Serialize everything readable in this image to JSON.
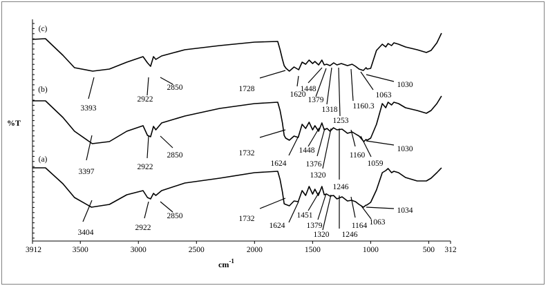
{
  "chart_data": {
    "type": "line",
    "ylabel": "%T",
    "xlabel": "cm",
    "xlabel_exponent": "-1",
    "x_ticks": [
      "3912",
      "3500",
      "3000",
      "2500",
      "2000",
      "1500",
      "1000",
      "500",
      "312"
    ],
    "xlim": [
      3912,
      312
    ],
    "series": [
      {
        "name": "(c)",
        "x": [
          3912,
          3800,
          3650,
          3550,
          3393,
          3250,
          3100,
          2960,
          2922,
          2895,
          2870,
          2850,
          2800,
          2600,
          2300,
          2000,
          1800,
          1780,
          1760,
          1745,
          1728,
          1700,
          1660,
          1620,
          1590,
          1560,
          1530,
          1500,
          1480,
          1448,
          1420,
          1400,
          1379,
          1350,
          1318,
          1290,
          1253,
          1200,
          1160,
          1130,
          1100,
          1063,
          1040,
          1030,
          1000,
          950,
          900,
          870,
          850,
          820,
          800,
          760,
          700,
          600,
          520,
          480,
          430,
          390
        ],
        "y": [
          57,
          56,
          80,
          98,
          103,
          100,
          90,
          82,
          91,
          96,
          82,
          86,
          81,
          72,
          66,
          61,
          60,
          72,
          86,
          95,
          99,
          103,
          97,
          101,
          90,
          93,
          87,
          92,
          89,
          94,
          87,
          94,
          93,
          95,
          91,
          94,
          92,
          95,
          93,
          96,
          100,
          102,
          98,
          100,
          99,
          73,
          64,
          68,
          63,
          66,
          62,
          64,
          68,
          72,
          76,
          73,
          62,
          48
        ]
      },
      {
        "name": "(b)",
        "x": [
          3912,
          3800,
          3650,
          3550,
          3397,
          3250,
          3100,
          2960,
          2922,
          2895,
          2870,
          2850,
          2800,
          2600,
          2300,
          2000,
          1800,
          1780,
          1760,
          1745,
          1732,
          1700,
          1660,
          1624,
          1590,
          1560,
          1530,
          1500,
          1480,
          1448,
          1420,
          1400,
          1376,
          1350,
          1320,
          1290,
          1246,
          1200,
          1160,
          1130,
          1100,
          1059,
          1040,
          1030,
          1000,
          950,
          900,
          870,
          850,
          820,
          800,
          760,
          700,
          600,
          520,
          480,
          430,
          390
        ],
        "y": [
          146,
          146,
          170,
          190,
          208,
          205,
          190,
          182,
          196,
          198,
          183,
          188,
          178,
          168,
          157,
          150,
          148,
          160,
          178,
          196,
          200,
          203,
          197,
          199,
          180,
          186,
          177,
          188,
          182,
          190,
          178,
          188,
          186,
          190,
          185,
          188,
          187,
          193,
          191,
          194,
          197,
          205,
          202,
          203,
          200,
          180,
          150,
          156,
          148,
          152,
          148,
          150,
          156,
          160,
          164,
          160,
          150,
          139
        ]
      },
      {
        "name": "(a)",
        "x": [
          3912,
          3800,
          3650,
          3550,
          3404,
          3250,
          3100,
          2960,
          2922,
          2895,
          2870,
          2850,
          2800,
          2600,
          2300,
          2000,
          1800,
          1780,
          1760,
          1745,
          1732,
          1700,
          1660,
          1624,
          1590,
          1560,
          1530,
          1500,
          1480,
          1451,
          1420,
          1400,
          1379,
          1350,
          1320,
          1290,
          1246,
          1200,
          1164,
          1130,
          1100,
          1063,
          1040,
          1034,
          1000,
          950,
          900,
          870,
          850,
          820,
          800,
          760,
          700,
          600,
          520,
          480,
          430,
          390
        ],
        "y": [
          243,
          243,
          266,
          286,
          300,
          296,
          282,
          276,
          286,
          288,
          280,
          283,
          276,
          265,
          258,
          250,
          248,
          260,
          278,
          295,
          296,
          298,
          291,
          292,
          276,
          283,
          270,
          281,
          274,
          283,
          270,
          282,
          281,
          284,
          283,
          288,
          285,
          291,
          290,
          292,
          296,
          300,
          297,
          297,
          293,
          275,
          250,
          247,
          244,
          250,
          248,
          250,
          257,
          262,
          262,
          258,
          250,
          243
        ]
      }
    ],
    "annotations": [
      {
        "label": "(c)"
      },
      {
        "label": "(b)"
      },
      {
        "label": "(a)"
      }
    ],
    "peak_labels": [
      {
        "series": "(c)",
        "text": "3393"
      },
      {
        "series": "(c)",
        "text": "2922"
      },
      {
        "series": "(c)",
        "text": "2850"
      },
      {
        "series": "(c)",
        "text": "1728"
      },
      {
        "series": "(c)",
        "text": "1620"
      },
      {
        "series": "(c)",
        "text": "1448"
      },
      {
        "series": "(c)",
        "text": "1379"
      },
      {
        "series": "(c)",
        "text": "1318"
      },
      {
        "series": "(c)",
        "text": "1253"
      },
      {
        "series": "(c)",
        "text": "1160.3"
      },
      {
        "series": "(c)",
        "text": "1063"
      },
      {
        "series": "(c)",
        "text": "1030"
      },
      {
        "series": "(b)",
        "text": "3397"
      },
      {
        "series": "(b)",
        "text": "2922"
      },
      {
        "series": "(b)",
        "text": "2850"
      },
      {
        "series": "(b)",
        "text": "1732"
      },
      {
        "series": "(b)",
        "text": "1624"
      },
      {
        "series": "(b)",
        "text": "1448"
      },
      {
        "series": "(b)",
        "text": "1376"
      },
      {
        "series": "(b)",
        "text": "1320"
      },
      {
        "series": "(b)",
        "text": "1246"
      },
      {
        "series": "(b)",
        "text": "1160"
      },
      {
        "series": "(b)",
        "text": "1059"
      },
      {
        "series": "(b)",
        "text": "1030"
      },
      {
        "series": "(a)",
        "text": "3404"
      },
      {
        "series": "(a)",
        "text": "2922"
      },
      {
        "series": "(a)",
        "text": "2850"
      },
      {
        "series": "(a)",
        "text": "1732"
      },
      {
        "series": "(a)",
        "text": "1624"
      },
      {
        "series": "(a)",
        "text": "1451"
      },
      {
        "series": "(a)",
        "text": "1379"
      },
      {
        "series": "(a)",
        "text": "1320"
      },
      {
        "series": "(a)",
        "text": "1246"
      },
      {
        "series": "(a)",
        "text": "1164"
      },
      {
        "series": "(a)",
        "text": "1063"
      },
      {
        "series": "(a)",
        "text": "1034"
      }
    ],
    "grid": false,
    "legend": "none"
  }
}
